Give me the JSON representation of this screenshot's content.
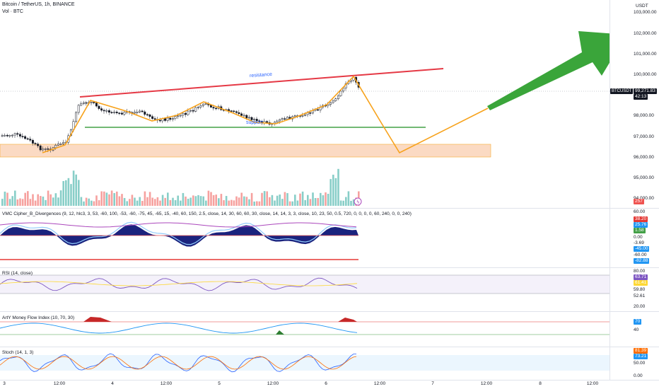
{
  "header": {
    "symbol_line": "Bitcoin / TetherUS, 1h, BINANCE",
    "volume_line": "Vol · BTC",
    "currency": "USDT"
  },
  "price_axis": {
    "ticks": [
      {
        "label": "103,000.00",
        "value": 103000
      },
      {
        "label": "102,000.00",
        "value": 102000
      },
      {
        "label": "101,000.00",
        "value": 101000
      },
      {
        "label": "100,000.00",
        "value": 100000
      },
      {
        "label": "98,000.00",
        "value": 98000
      },
      {
        "label": "97,000.00",
        "value": 97000
      },
      {
        "label": "96,000.00",
        "value": 96000
      },
      {
        "label": "95,000.00",
        "value": 95000
      },
      {
        "label": "94,000.00",
        "value": 94000
      }
    ],
    "symbol_badge": "BTCUSDT",
    "price_badge": "99,271.83",
    "countdown": "42:13",
    "volume_badge": "257"
  },
  "annotations": {
    "resistance": "resistance",
    "support": "support"
  },
  "indicators": {
    "vmc": {
      "title": "VMC Cipher_B_Divergences (9, 12, hlc3, 3, 53, -60, 100, -53, -60, -75, 45, -65, 15, -40, 60, 150, 2.5, close, 14, 30, 60, 60, 30, close, 14, 14, 3, 3, close, 10, 23, 50, 0.5, 720, 0, 0, 0, 0, 60, 240, 0, 0, 240)",
      "values": [
        "60.00",
        "38.20",
        "25.76",
        "1.58",
        "0.00",
        "-3.69",
        "-45.00",
        "-60.00",
        "-82.88"
      ],
      "badge_colors": [
        "",
        "#e53935",
        "#2196f3",
        "#43a047",
        "",
        "",
        "#2196f3",
        "",
        "#2196f3"
      ]
    },
    "rsi": {
      "title": "RSI (14, close)",
      "values": [
        "80.00",
        "63.71",
        "61.41",
        "59.80",
        "52.61",
        "20.00"
      ],
      "badge_colors": [
        "",
        "#7e57c2",
        "#fdd835",
        "",
        "",
        ""
      ]
    },
    "mfi": {
      "title": "ArtY Money Flow Index (10, 70, 30)",
      "values": [
        "70",
        "40"
      ],
      "badge_colors": [
        "#2196f3",
        ""
      ]
    },
    "stoch": {
      "title": "Stoch (14, 1, 3)",
      "values": [
        "81.39",
        "73.21",
        "50.00",
        "0.00"
      ],
      "badge_colors": [
        "#ff6d00",
        "#2196f3",
        "",
        ""
      ]
    }
  },
  "time_axis": [
    {
      "label": "3",
      "x": 6
    },
    {
      "label": "12:00",
      "x": 84
    },
    {
      "label": "4",
      "x": 159
    },
    {
      "label": "12:00",
      "x": 235
    },
    {
      "label": "5",
      "x": 310
    },
    {
      "label": "12:00",
      "x": 386
    },
    {
      "label": "6",
      "x": 461
    },
    {
      "label": "12:00",
      "x": 537
    },
    {
      "label": "7",
      "x": 612
    },
    {
      "label": "12:00",
      "x": 688
    },
    {
      "label": "8",
      "x": 764
    },
    {
      "label": "12:00",
      "x": 838
    }
  ],
  "colors": {
    "up": "#26a69a",
    "down": "#ef5350",
    "resistance": "#e53945",
    "support": "#43a047",
    "path": "#f7a21b",
    "arrow": "#3aa53a",
    "demand_zone": "#fbd6bd"
  }
}
